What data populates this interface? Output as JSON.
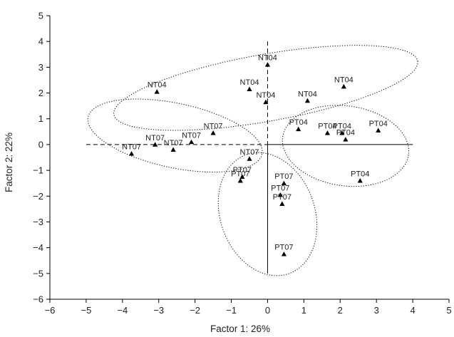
{
  "chart_data": {
    "type": "scatter",
    "title": "",
    "xlabel": "Factor 1: 26%",
    "ylabel": "Factor 2: 22%",
    "xlim": [
      -6,
      5
    ],
    "ylim": [
      -6,
      5
    ],
    "xticks": [
      "−6",
      "−5",
      "−4",
      "−3",
      "−2",
      "−1",
      "0",
      "1",
      "2",
      "3",
      "4",
      "5"
    ],
    "yticks": [
      "5",
      "4",
      "3",
      "2",
      "1",
      "0",
      "−1",
      "−2",
      "−3",
      "−4",
      "−5",
      "−6"
    ],
    "grid": false,
    "legend": "none",
    "marker": "triangle",
    "marker_color": "#000000",
    "points": [
      {
        "label": "NT04",
        "x": 0.0,
        "y": 3.1
      },
      {
        "label": "NT04",
        "x": -3.05,
        "y": 2.05
      },
      {
        "label": "NT04",
        "x": -0.5,
        "y": 2.15
      },
      {
        "label": "NT04",
        "x": -0.05,
        "y": 1.65
      },
      {
        "label": "NT04",
        "x": 1.1,
        "y": 1.7
      },
      {
        "label": "NT04",
        "x": 2.1,
        "y": 2.25
      },
      {
        "label": "NT07",
        "x": -3.75,
        "y": -0.35
      },
      {
        "label": "NT07",
        "x": -3.1,
        "y": 0.0
      },
      {
        "label": "NT07",
        "x": -2.6,
        "y": -0.2
      },
      {
        "label": "NT07",
        "x": -2.1,
        "y": 0.1
      },
      {
        "label": "NT07",
        "x": -1.5,
        "y": 0.45
      },
      {
        "label": "NT07",
        "x": -0.5,
        "y": -0.55
      },
      {
        "label": "PT04",
        "x": 0.85,
        "y": 0.6
      },
      {
        "label": "PT04",
        "x": 1.65,
        "y": 0.45
      },
      {
        "label": "PT04",
        "x": 2.05,
        "y": 0.45
      },
      {
        "label": "PT04",
        "x": 2.15,
        "y": 0.2
      },
      {
        "label": "PT04",
        "x": 3.05,
        "y": 0.55
      },
      {
        "label": "PT04",
        "x": 2.55,
        "y": -1.4
      },
      {
        "label": "PT07",
        "x": -0.75,
        "y": -1.4
      },
      {
        "label": "PT07",
        "x": -0.7,
        "y": -1.25
      },
      {
        "label": "PT07",
        "x": 0.45,
        "y": -1.5
      },
      {
        "label": "PT07",
        "x": 0.35,
        "y": -1.95
      },
      {
        "label": "PT07",
        "x": 0.4,
        "y": -2.3
      },
      {
        "label": "PT07",
        "x": 0.45,
        "y": -4.25
      }
    ],
    "clusters": [
      {
        "label": "NT04",
        "cx": -0.05,
        "cy": 2.2,
        "rx": 4.25,
        "ry": 1.3,
        "angle": 10
      },
      {
        "label": "NT07",
        "cx": -2.55,
        "cy": 0.35,
        "rx": 2.45,
        "ry": 1.25,
        "angle": -12
      },
      {
        "label": "PT04",
        "cx": 2.15,
        "cy": -0.05,
        "rx": 1.75,
        "ry": 1.55,
        "angle": -8
      },
      {
        "label": "PT07",
        "cx": 0.0,
        "cy": -2.7,
        "rx": 1.3,
        "ry": 2.45,
        "angle": 20
      }
    ]
  }
}
